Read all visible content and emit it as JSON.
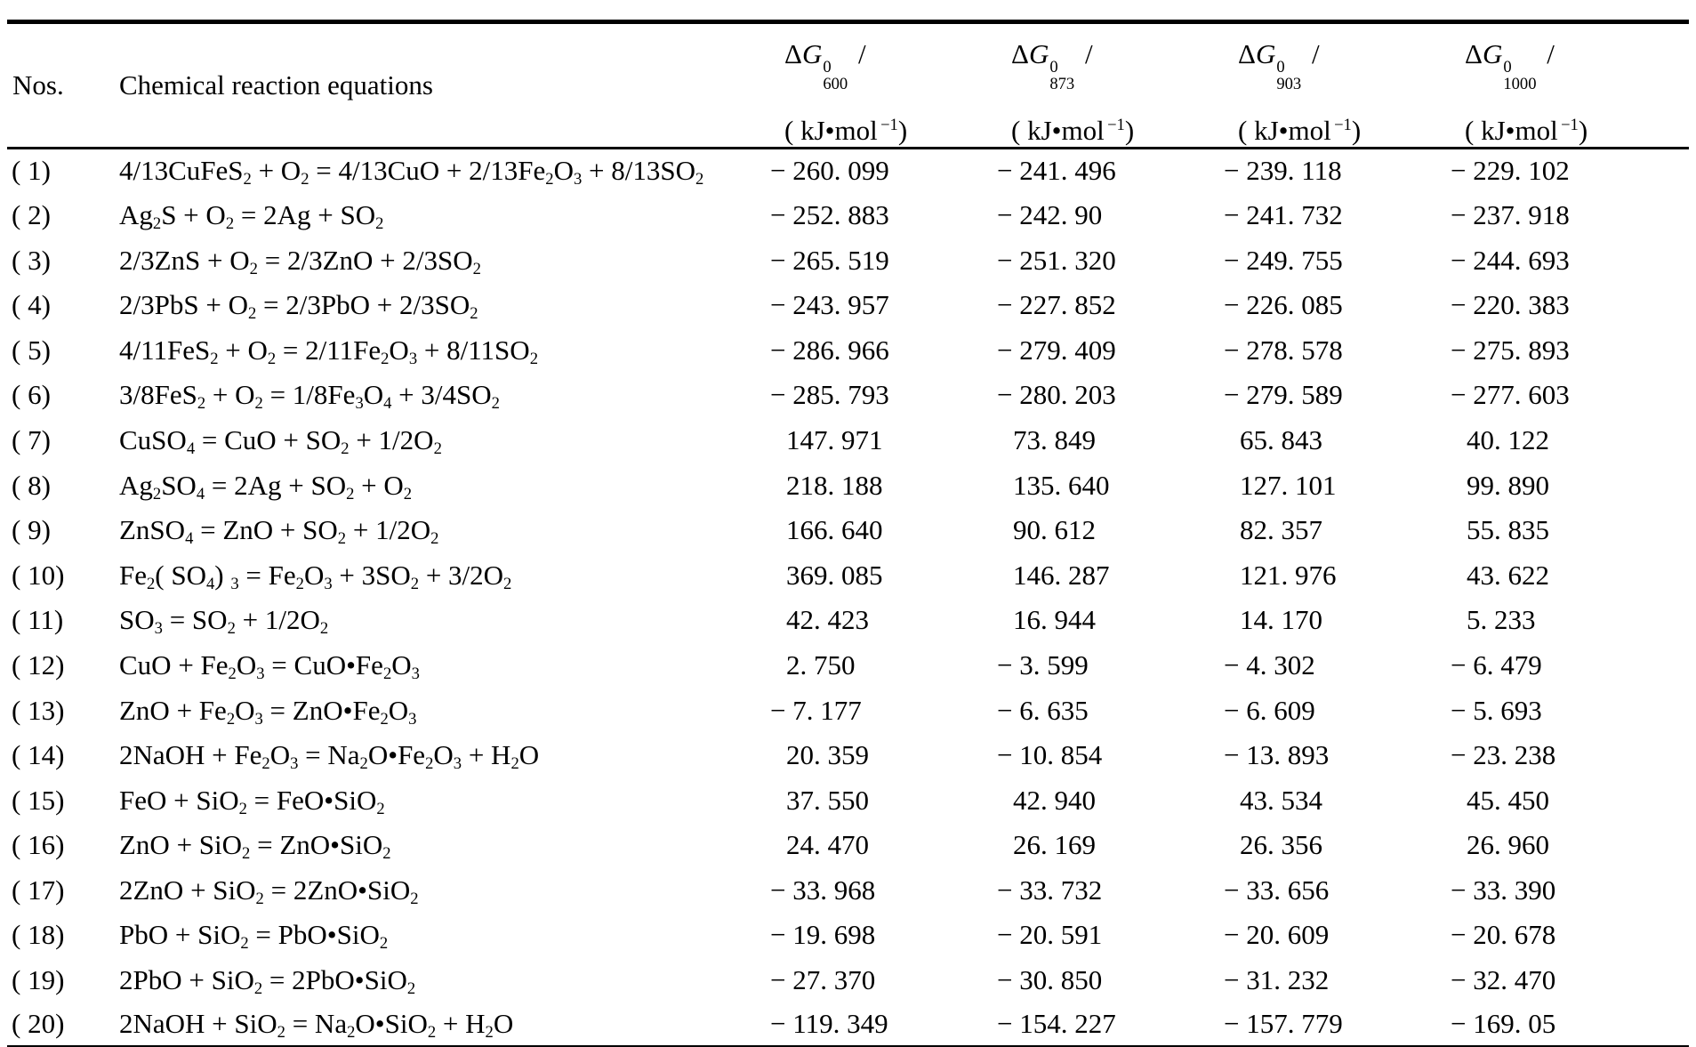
{
  "table": {
    "header": {
      "nos": "Nos.",
      "equation": "Chemical reaction equations",
      "dg": [
        {
          "symbol_html": "Δ<i>G</i>",
          "sup": "0",
          "sub": "600",
          "slash": "/",
          "unit_html": "( kJ•mol<sup>−1</sup>)"
        },
        {
          "symbol_html": "Δ<i>G</i>",
          "sup": "0",
          "sub": "873",
          "slash": "/",
          "unit_html": "( kJ•mol<sup>−1</sup>)"
        },
        {
          "symbol_html": "Δ<i>G</i>",
          "sup": "0",
          "sub": "903",
          "slash": "/",
          "unit_html": "( kJ•mol<sup>−1</sup>)"
        },
        {
          "symbol_html": "Δ<i>G</i>",
          "sup": "0",
          "sub": "1000",
          "slash": "/",
          "unit_html": "( kJ•mol<sup>−1</sup>)"
        }
      ]
    },
    "rows": [
      {
        "no": "( 1)",
        "equation_html": "4/13CuFeS<sub>2</sub> + O<sub>2</sub> = 4/13CuO + 2/13Fe<sub>2</sub>O<sub>3</sub> + 8/13SO<sub>2</sub>",
        "values": [
          "− 260. 099",
          "− 241. 496",
          "− 239. 118",
          "− 229. 102"
        ]
      },
      {
        "no": "( 2)",
        "equation_html": "Ag<sub>2</sub>S + O<sub>2</sub> = 2Ag + SO<sub>2</sub>",
        "values": [
          "− 252. 883",
          "− 242. 90",
          "− 241. 732",
          "− 237. 918"
        ]
      },
      {
        "no": "( 3)",
        "equation_html": "2/3ZnS + O<sub>2</sub> = 2/3ZnO + 2/3SO<sub>2</sub>",
        "values": [
          "− 265. 519",
          "− 251. 320",
          "− 249. 755",
          "− 244. 693"
        ]
      },
      {
        "no": "( 4)",
        "equation_html": "2/3PbS + O<sub>2</sub> = 2/3PbO + 2/3SO<sub>2</sub>",
        "values": [
          "− 243. 957",
          "− 227. 852",
          "− 226. 085",
          "− 220. 383"
        ]
      },
      {
        "no": "( 5)",
        "equation_html": "4/11FeS<sub>2</sub> + O<sub>2</sub> = 2/11Fe<sub>2</sub>O<sub>3</sub> + 8/11SO<sub>2</sub>",
        "values": [
          "− 286. 966",
          "− 279. 409",
          "− 278. 578",
          "− 275. 893"
        ]
      },
      {
        "no": "( 6)",
        "equation_html": "3/8FeS<sub>2</sub> + O<sub>2</sub> = 1/8Fe<sub>3</sub>O<sub>4</sub> + 3/4SO<sub>2</sub>",
        "values": [
          "− 285. 793",
          "− 280. 203",
          "− 279. 589",
          "− 277. 603"
        ]
      },
      {
        "no": "( 7)",
        "equation_html": "CuSO<sub>4</sub> = CuO + SO<sub>2</sub> + 1/2O<sub>2</sub>",
        "values": [
          "147. 971",
          "73. 849",
          "65. 843",
          "40. 122"
        ]
      },
      {
        "no": "( 8)",
        "equation_html": "Ag<sub>2</sub>SO<sub>4</sub> = 2Ag + SO<sub>2</sub> + O<sub>2</sub>",
        "values": [
          "218. 188",
          "135. 640",
          "127. 101",
          "99. 890"
        ]
      },
      {
        "no": "( 9)",
        "equation_html": "ZnSO<sub>4</sub> = ZnO + SO<sub>2</sub> + 1/2O<sub>2</sub>",
        "values": [
          "166. 640",
          "90. 612",
          "82. 357",
          "55. 835"
        ]
      },
      {
        "no": "( 10)",
        "equation_html": "Fe<sub>2</sub>( SO<sub>4</sub>) <sub>3</sub> = Fe<sub>2</sub>O<sub>3</sub> + 3SO<sub>2</sub> + 3/2O<sub>2</sub>",
        "values": [
          "369. 085",
          "146. 287",
          "121. 976",
          "43. 622"
        ]
      },
      {
        "no": "( 11)",
        "equation_html": "SO<sub>3</sub> = SO<sub>2</sub> + 1/2O<sub>2</sub>",
        "values": [
          "42. 423",
          "16. 944",
          "14. 170",
          "5. 233"
        ]
      },
      {
        "no": "( 12)",
        "equation_html": "CuO +  Fe<sub>2</sub>O<sub>3</sub> = CuO•Fe<sub>2</sub>O<sub>3</sub>",
        "values": [
          "2. 750",
          "− 3. 599",
          "− 4. 302",
          "− 6. 479"
        ]
      },
      {
        "no": "( 13)",
        "equation_html": "ZnO + Fe<sub>2</sub>O<sub>3</sub> = ZnO•Fe<sub>2</sub>O<sub>3</sub>",
        "values": [
          "− 7. 177",
          "− 6. 635",
          "− 6. 609",
          "− 5. 693"
        ]
      },
      {
        "no": "( 14)",
        "equation_html": "2NaOH + Fe<sub>2</sub>O<sub>3</sub> = Na<sub>2</sub>O•Fe<sub>2</sub>O<sub>3</sub> + H<sub>2</sub>O",
        "values": [
          "20. 359",
          "− 10. 854",
          "− 13. 893",
          "− 23. 238"
        ]
      },
      {
        "no": "( 15)",
        "equation_html": "FeO + SiO<sub>2</sub> = FeO•SiO<sub>2</sub>",
        "values": [
          "37. 550",
          "42. 940",
          "43. 534",
          "45. 450"
        ]
      },
      {
        "no": "( 16)",
        "equation_html": "ZnO + SiO<sub>2</sub> = ZnO•SiO<sub>2</sub>",
        "values": [
          "24. 470",
          "26. 169",
          "26. 356",
          "26. 960"
        ]
      },
      {
        "no": "( 17)",
        "equation_html": "2ZnO + SiO<sub>2</sub> = 2ZnO•SiO<sub>2</sub>",
        "values": [
          "− 33. 968",
          "− 33. 732",
          "− 33. 656",
          "− 33. 390"
        ]
      },
      {
        "no": "( 18)",
        "equation_html": "PbO + SiO<sub>2</sub> = PbO•SiO<sub>2</sub>",
        "values": [
          "− 19. 698",
          "− 20. 591",
          "− 20. 609",
          "− 20. 678"
        ]
      },
      {
        "no": "( 19)",
        "equation_html": "2PbO + SiO<sub>2</sub> = 2PbO•SiO<sub>2</sub>",
        "values": [
          "− 27. 370",
          "− 30. 850",
          "− 31. 232",
          "− 32. 470"
        ]
      },
      {
        "no": "( 20)",
        "equation_html": "2NaOH + SiO<sub>2</sub> = Na<sub>2</sub>O•SiO<sub>2</sub> + H<sub>2</sub>O",
        "values": [
          "− 119. 349",
          "− 154. 227",
          "− 157. 779",
          "− 169. 05"
        ]
      }
    ]
  }
}
